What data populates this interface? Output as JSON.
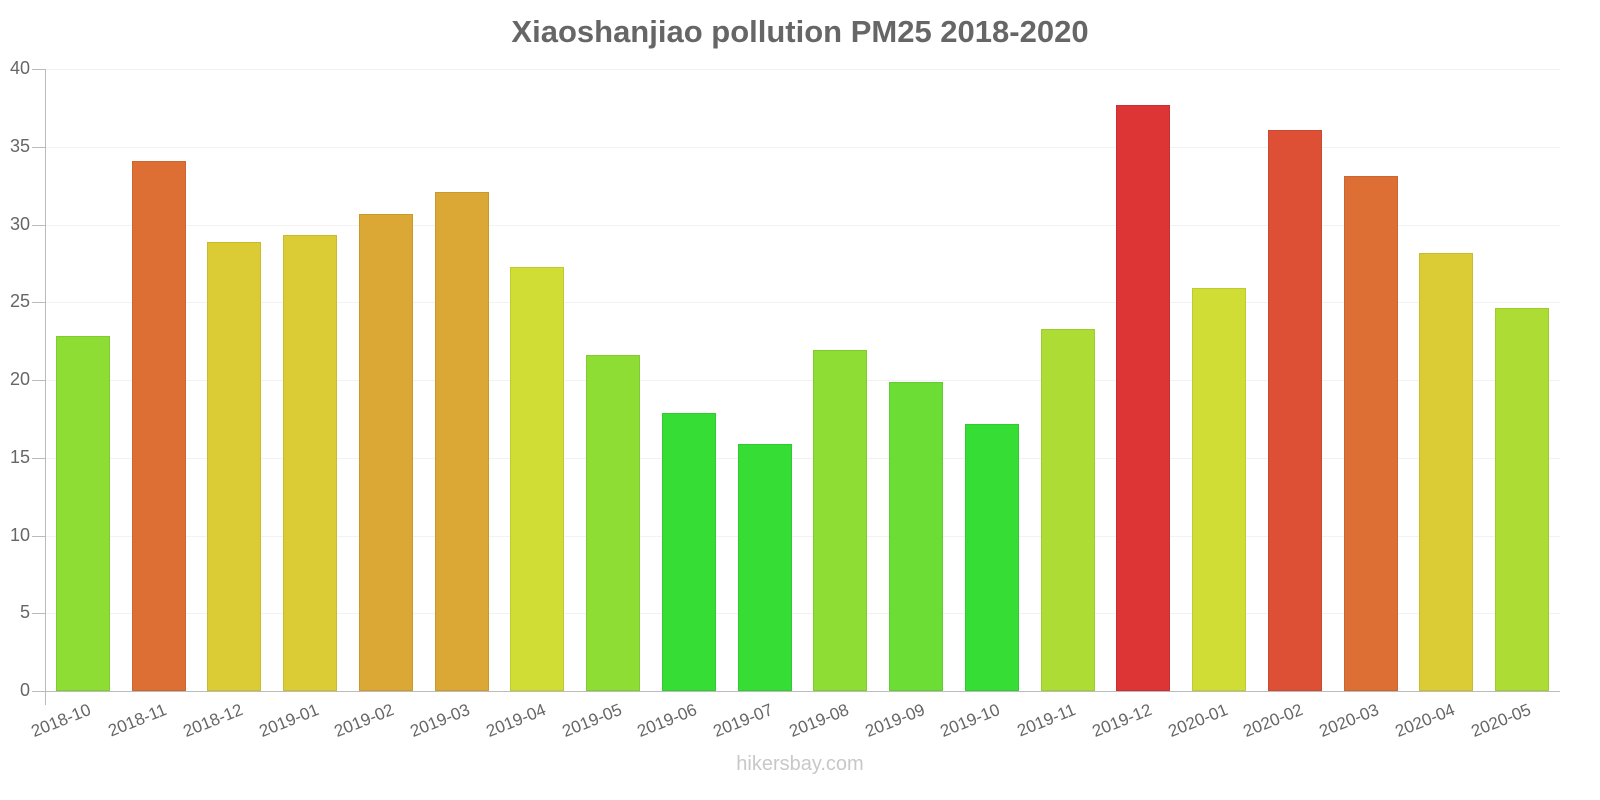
{
  "chart_data": {
    "type": "bar",
    "title": "Xiaoshanjiao pollution PM25 2018-2020",
    "xlabel": "",
    "ylabel": "",
    "ylim": [
      0,
      40
    ],
    "yticks": [
      0,
      5,
      10,
      15,
      20,
      25,
      30,
      35,
      40
    ],
    "grid": true,
    "legend": null,
    "categories": [
      "2018-10",
      "2018-11",
      "2018-12",
      "2019-01",
      "2019-02",
      "2019-03",
      "2019-04",
      "2019-05",
      "2019-06",
      "2019-07",
      "2019-08",
      "2019-09",
      "2019-10",
      "2019-11",
      "2019-12",
      "2020-01",
      "2020-02",
      "2020-03",
      "2020-04",
      "2020-05"
    ],
    "values": [
      22.8,
      34.1,
      28.9,
      29.3,
      30.7,
      32.1,
      27.3,
      21.6,
      17.9,
      15.9,
      21.9,
      19.9,
      17.2,
      23.3,
      37.7,
      25.9,
      36.1,
      33.1,
      28.2,
      24.6
    ],
    "colors": [
      "#8ddd35",
      "#dd6f35",
      "#dbcb35",
      "#dbcb35",
      "#dba735",
      "#dba735",
      "#cfdd35",
      "#8ddd35",
      "#35dd35",
      "#35dd35",
      "#8ddd35",
      "#6bdd35",
      "#35dd35",
      "#addd35",
      "#dd3535",
      "#cfdd35",
      "#dd5035",
      "#dd6f35",
      "#dbcb35",
      "#addd35"
    ]
  },
  "header": {
    "title": "Xiaoshanjiao pollution PM25 2018-2020"
  },
  "footer": {
    "watermark": "hikersbay.com"
  }
}
